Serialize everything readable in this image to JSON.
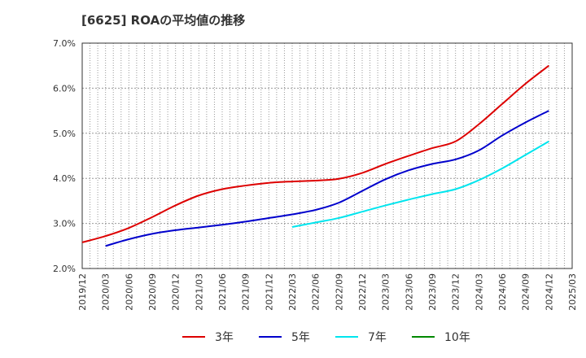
{
  "chart_data": {
    "type": "line",
    "title": "[6625]  ROAの平均値の推移",
    "xlabel": "",
    "ylabel": "",
    "ylim": [
      2.0,
      7.0
    ],
    "yticks": [
      2.0,
      3.0,
      4.0,
      5.0,
      6.0,
      7.0
    ],
    "ytick_labels": [
      "2.0%",
      "3.0%",
      "4.0%",
      "5.0%",
      "6.0%",
      "7.0%"
    ],
    "xticks": [
      "2019/12",
      "2020/03",
      "2020/06",
      "2020/09",
      "2020/12",
      "2021/03",
      "2021/06",
      "2021/09",
      "2021/12",
      "2022/03",
      "2022/06",
      "2022/09",
      "2022/12",
      "2023/03",
      "2023/06",
      "2023/09",
      "2023/12",
      "2024/03",
      "2024/06",
      "2024/09",
      "2024/12",
      "2025/03"
    ],
    "grid": true,
    "legend_position": "bottom",
    "series": [
      {
        "name": "3年",
        "color": "#dd0000",
        "start": 0,
        "values": [
          2.58,
          2.72,
          2.9,
          3.14,
          3.4,
          3.62,
          3.76,
          3.84,
          3.9,
          3.93,
          3.95,
          3.99,
          4.12,
          4.32,
          4.5,
          4.67,
          4.82,
          5.2,
          5.65,
          6.1,
          6.5
        ]
      },
      {
        "name": "5年",
        "color": "#0000cc",
        "start": 1,
        "values": [
          2.5,
          2.65,
          2.77,
          2.85,
          2.91,
          2.97,
          3.04,
          3.12,
          3.2,
          3.3,
          3.46,
          3.72,
          3.98,
          4.18,
          4.32,
          4.42,
          4.62,
          4.95,
          5.24,
          5.5
        ]
      },
      {
        "name": "7年",
        "color": "#00e5ee",
        "start": 9,
        "values": [
          2.92,
          3.02,
          3.12,
          3.26,
          3.4,
          3.53,
          3.65,
          3.76,
          3.96,
          4.22,
          4.52,
          4.82
        ]
      },
      {
        "name": "10年",
        "color": "#008800",
        "start": 0,
        "values": []
      }
    ]
  }
}
